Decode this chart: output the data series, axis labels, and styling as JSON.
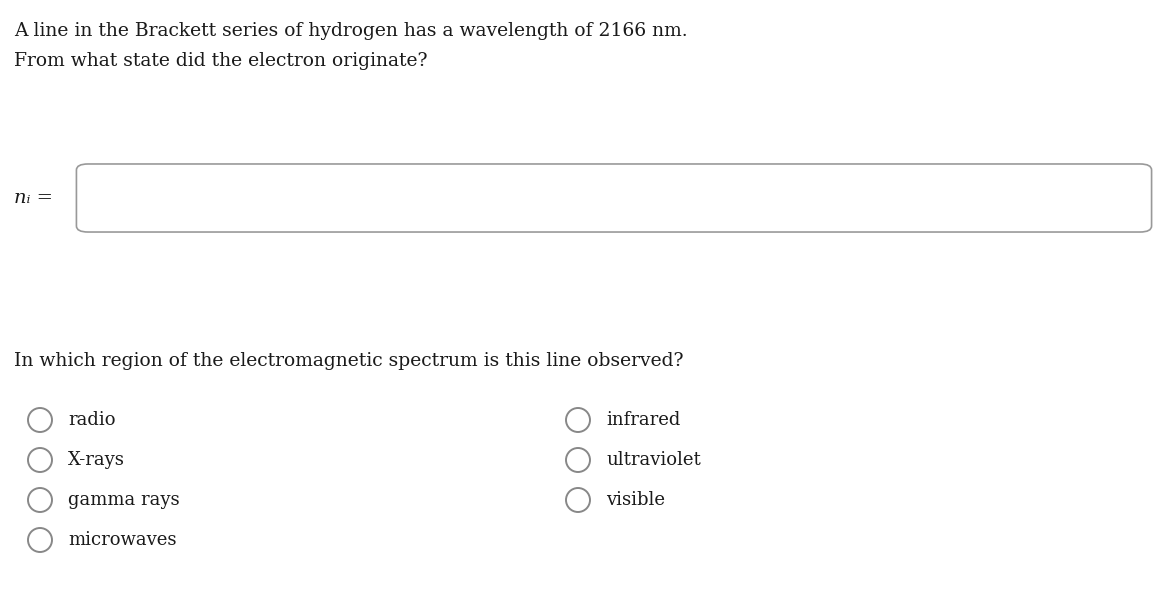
{
  "title_line1": "A line in the Brackett series of hydrogen has a wavelength of 2166 nm.",
  "title_line2": "From what state did the electron originate?",
  "input_label": "nᵢ =",
  "question2": "In which region of the electromagnetic spectrum is this line observed?",
  "left_options": [
    "radio",
    "X-rays",
    "gamma rays",
    "microwaves"
  ],
  "right_options": [
    "infrared",
    "ultraviolet",
    "visible"
  ],
  "bg_color": "#ffffff",
  "text_color": "#1a1a1a",
  "box_color": "#999999",
  "circle_color": "#888888",
  "font_size_main": 13.5,
  "font_size_label": 14,
  "font_size_options": 13
}
